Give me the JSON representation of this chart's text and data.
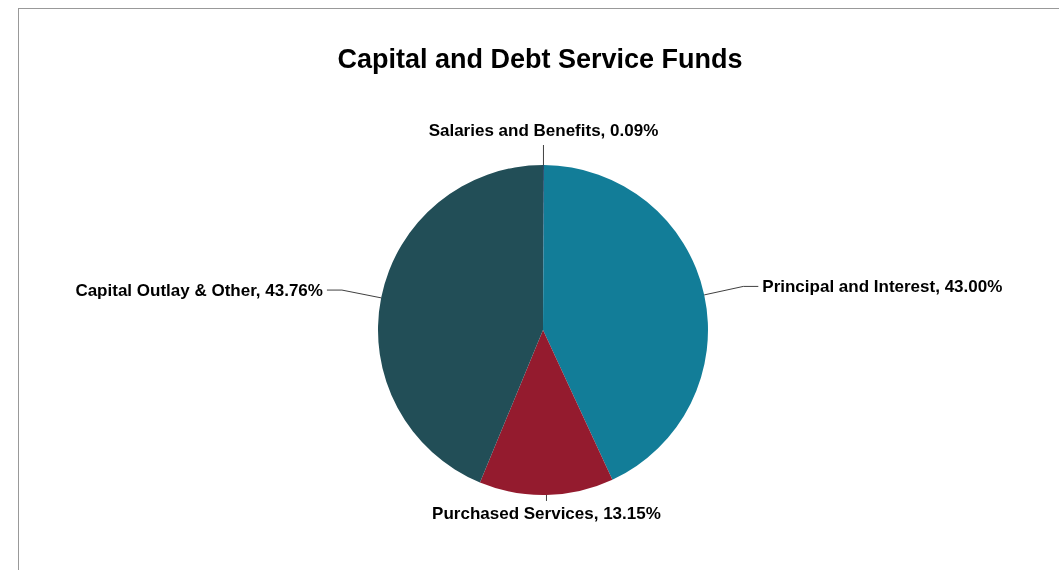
{
  "chart_data": {
    "type": "pie",
    "title": "Capital and Debt Service Funds",
    "categories": [
      "Salaries and Benefits",
      "Principal and Interest",
      "Purchased Services",
      "Capital Outlay & Other"
    ],
    "values": [
      0.09,
      43.0,
      13.15,
      43.76
    ],
    "colors": [
      "#1f3a5f",
      "#127d98",
      "#941b2e",
      "#224e57"
    ],
    "value_labels": [
      "0.09%",
      "43.00%",
      "13.15%",
      "43.76%"
    ],
    "legend": false
  }
}
